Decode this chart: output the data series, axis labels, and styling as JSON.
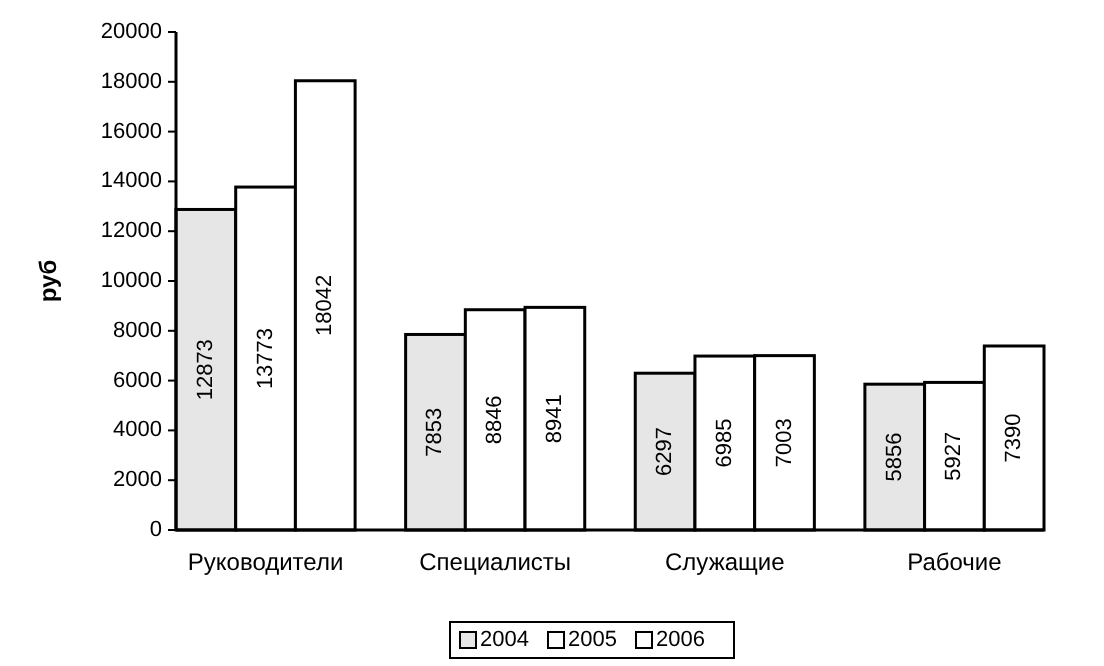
{
  "chart_data": {
    "type": "bar",
    "ylabel": "руб",
    "categories": [
      "Руководители",
      "Специалисты",
      "Служащие",
      "Рабочие"
    ],
    "series": [
      {
        "name": "2004",
        "color": "#e6e6e6",
        "values": [
          12873,
          7853,
          6297,
          5856
        ]
      },
      {
        "name": "2005",
        "color": "#ffffff",
        "values": [
          13773,
          8846,
          6985,
          5927
        ]
      },
      {
        "name": "2006",
        "color": "#ffffff",
        "values": [
          18042,
          8941,
          7003,
          7390
        ]
      }
    ],
    "ylim": [
      0,
      20000
    ],
    "yticks": [
      0,
      2000,
      4000,
      6000,
      8000,
      10000,
      12000,
      14000,
      16000,
      18000,
      20000
    ],
    "grid": false,
    "legend": "bottom",
    "data_labels": true
  }
}
